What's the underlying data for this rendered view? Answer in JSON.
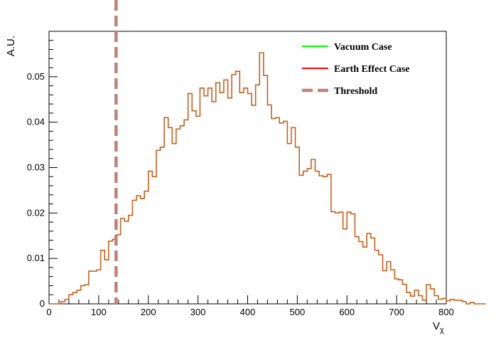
{
  "chart_data": {
    "type": "histogram",
    "xlabel_main": "V",
    "xlabel_sub": "χ",
    "ylabel": "A.U.",
    "xlim": [
      0,
      800
    ],
    "ylim": [
      0,
      0.06
    ],
    "x_ticks": [
      0,
      100,
      200,
      300,
      400,
      500,
      600,
      700,
      800
    ],
    "y_ticks": [
      0,
      0.01,
      0.02,
      0.03,
      0.04,
      0.05
    ],
    "y_tick_labels": [
      "0",
      "0.01",
      "0.02",
      "0.03",
      "0.04",
      "0.05"
    ],
    "x_tick_labels": [
      "0",
      "100",
      "200",
      "300",
      "400",
      "500",
      "600",
      "700",
      "800"
    ],
    "grid": false,
    "legend_position": "top-right",
    "bin_width": 8,
    "bin_start": 0,
    "bin_values": [
      0,
      0,
      0,
      0.0005,
      0.001,
      0.002,
      0.0025,
      0.003,
      0.004,
      0.0042,
      0.0072,
      0.0072,
      0.0075,
      0.0118,
      0.0097,
      0.0138,
      0.0142,
      0.0152,
      0.0188,
      0.0182,
      0.0195,
      0.0228,
      0.0238,
      0.0232,
      0.0248,
      0.0292,
      0.028,
      0.0338,
      0.0345,
      0.041,
      0.0388,
      0.0353,
      0.0385,
      0.0392,
      0.0405,
      0.0463,
      0.0425,
      0.0413,
      0.0475,
      0.0458,
      0.0475,
      0.0445,
      0.0487,
      0.0465,
      0.0493,
      0.0453,
      0.0505,
      0.0512,
      0.0465,
      0.0475,
      0.0463,
      0.0437,
      0.0482,
      0.0553,
      0.0503,
      0.0438,
      0.0408,
      0.041,
      0.0398,
      0.0402,
      0.0353,
      0.0388,
      0.0345,
      0.0283,
      0.0292,
      0.0298,
      0.0318,
      0.0292,
      0.0282,
      0.028,
      0.0285,
      0.0203,
      0.02,
      0.0202,
      0.0165,
      0.0202,
      0.0198,
      0.0148,
      0.0137,
      0.0125,
      0.0155,
      0.0145,
      0.0118,
      0.0108,
      0.0073,
      0.0093,
      0.0075,
      0.0055,
      0.0053,
      0.0043,
      0.0025,
      0.0017,
      0.003,
      0.0018,
      0.0008,
      0.0042,
      0.0033,
      0.0018,
      0.001,
      0.0012,
      0.0007,
      0.001,
      0.0008,
      0.0008,
      0.0005,
      0.0,
      0.0003,
      0,
      0,
      0
    ],
    "threshold": 135,
    "series": [
      {
        "name": "Vacuum Case",
        "color": "#00ff00",
        "style": "solid"
      },
      {
        "name": "Earth Effect Case",
        "color": "#ff0000",
        "style": "solid"
      },
      {
        "name": "Threshold",
        "color": "#c0807a",
        "style": "dashed"
      }
    ],
    "histogram_color": "#c8601c"
  }
}
